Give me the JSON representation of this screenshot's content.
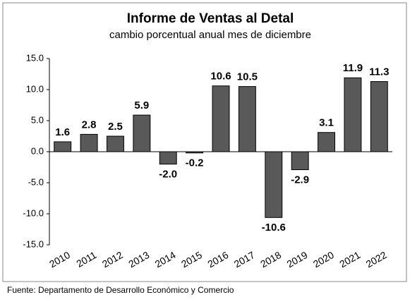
{
  "chart_data": {
    "type": "bar",
    "title": "Informe de Ventas al Detal",
    "subtitle": "cambio porcentual anual mes de diciembre",
    "source": "Fuente: Departamento de Desarrollo Económico y Comercio",
    "categories": [
      "2010",
      "2011",
      "2012",
      "2013",
      "2014",
      "2015",
      "2016",
      "2017",
      "2018",
      "2019",
      "2020",
      "2021",
      "2022"
    ],
    "values": [
      1.6,
      2.8,
      2.5,
      5.9,
      -2.0,
      -0.2,
      10.6,
      10.5,
      -10.6,
      -2.9,
      3.1,
      11.9,
      11.3
    ],
    "value_labels": [
      "1.6",
      "2.8",
      "2.5",
      "5.9",
      "-2.0",
      "-0.2",
      "10.6",
      "10.5",
      "-10.6",
      "-2.9",
      "3.1",
      "11.9",
      "11.3"
    ],
    "color": "#595959",
    "ylim": [
      -15,
      15
    ],
    "yticks": [
      {
        "value": -15,
        "label": "-15.0"
      },
      {
        "value": -10,
        "label": "-10.0"
      },
      {
        "value": -5,
        "label": "-5.0"
      },
      {
        "value": 0,
        "label": "0.0"
      },
      {
        "value": 5,
        "label": "5.0"
      },
      {
        "value": 10,
        "label": "10.0"
      },
      {
        "value": 15,
        "label": "15.0"
      }
    ],
    "grid": false
  }
}
